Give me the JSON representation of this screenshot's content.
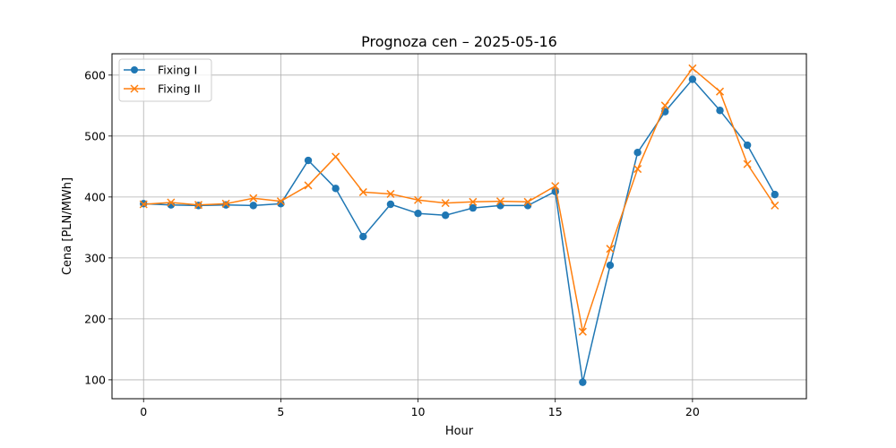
{
  "chart_data": {
    "type": "line",
    "title": "Prognoza cen – 2025-05-16",
    "xlabel": "Hour",
    "ylabel": "Cena [PLN/MWh]",
    "x": [
      0,
      1,
      2,
      3,
      4,
      5,
      6,
      7,
      8,
      9,
      10,
      11,
      12,
      13,
      14,
      15,
      16,
      17,
      18,
      19,
      20,
      21,
      22,
      23
    ],
    "xlim": [
      -1.15,
      24.15
    ],
    "ylim": [
      69,
      635
    ],
    "xticks": [
      0,
      5,
      10,
      15,
      20
    ],
    "yticks": [
      100,
      200,
      300,
      400,
      500,
      600
    ],
    "grid": true,
    "legend_position": "upper-left",
    "series": [
      {
        "name": "Fixing I",
        "color": "#1f77b4",
        "marker": "circle",
        "values": [
          389,
          387,
          386,
          387,
          386,
          389,
          460,
          414,
          335,
          388,
          373,
          370,
          382,
          386,
          386,
          409,
          96,
          288,
          473,
          540,
          593,
          542,
          485,
          404
        ]
      },
      {
        "name": "Fixing II",
        "color": "#ff7f0e",
        "marker": "x",
        "values": [
          388,
          391,
          387,
          389,
          398,
          393,
          419,
          466,
          408,
          405,
          395,
          390,
          392,
          393,
          392,
          418,
          179,
          315,
          446,
          550,
          611,
          573,
          454,
          386
        ]
      }
    ]
  }
}
